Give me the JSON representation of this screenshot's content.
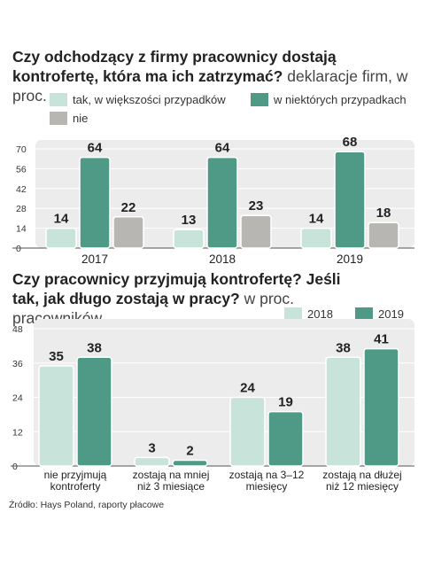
{
  "chart1": {
    "title_bold": "Czy odchodzący z firmy pracownicy dostają kontrofertę, która ma ich zatrzymać?",
    "title_rest": " deklaracje firm, w proc.",
    "legend": [
      "tak, w większości przypadków",
      "w niektórych przypadkach",
      "nie"
    ]
  },
  "chart2": {
    "title_bold": "Czy pracownicy przyjmują kontrofertę? Jeśli tak, jak długo zostają w pracy?",
    "title_rest": " w proc. pracowników",
    "legend": [
      "2018",
      "2019"
    ]
  },
  "source": "Źródło: Hays Poland, raporty płacowe",
  "colors": {
    "light": "#c8e3d9",
    "dark": "#4f9a87",
    "gray": "#b8b6b2",
    "panel": "#ececec"
  },
  "chart_data": [
    {
      "type": "bar",
      "title": "Czy odchodzący z firmy pracownicy dostają kontrofertę, która ma ich zatrzymać? deklaracje firm, w proc.",
      "categories": [
        "2017",
        "2018",
        "2019"
      ],
      "series": [
        {
          "name": "tak, w większości przypadków",
          "values": [
            14,
            13,
            14
          ]
        },
        {
          "name": "w niektórych przypadkach",
          "values": [
            64,
            64,
            68
          ]
        },
        {
          "name": "nie",
          "values": [
            22,
            23,
            18
          ]
        }
      ],
      "ylim": [
        0,
        70
      ],
      "yticks": [
        0,
        14,
        28,
        42,
        56,
        70
      ],
      "legend": "top-left"
    },
    {
      "type": "bar",
      "title": "Czy pracownicy przyjmują kontrofertę? Jeśli tak, jak długo zostają w pracy? w proc. pracowników",
      "categories": [
        [
          "nie przyjmują",
          "kontroferty"
        ],
        [
          "zostają na mniej",
          "niż 3 miesiące"
        ],
        [
          "zostają na 3–12",
          "miesięcy"
        ],
        [
          "zostają na dłużej",
          "niż 12 miesięcy"
        ]
      ],
      "series": [
        {
          "name": "2018",
          "values": [
            35,
            3,
            24,
            38
          ]
        },
        {
          "name": "2019",
          "values": [
            38,
            2,
            19,
            41
          ]
        }
      ],
      "ylim": [
        0,
        48
      ],
      "yticks": [
        0,
        12,
        24,
        36,
        48
      ],
      "legend": "top-right"
    }
  ]
}
